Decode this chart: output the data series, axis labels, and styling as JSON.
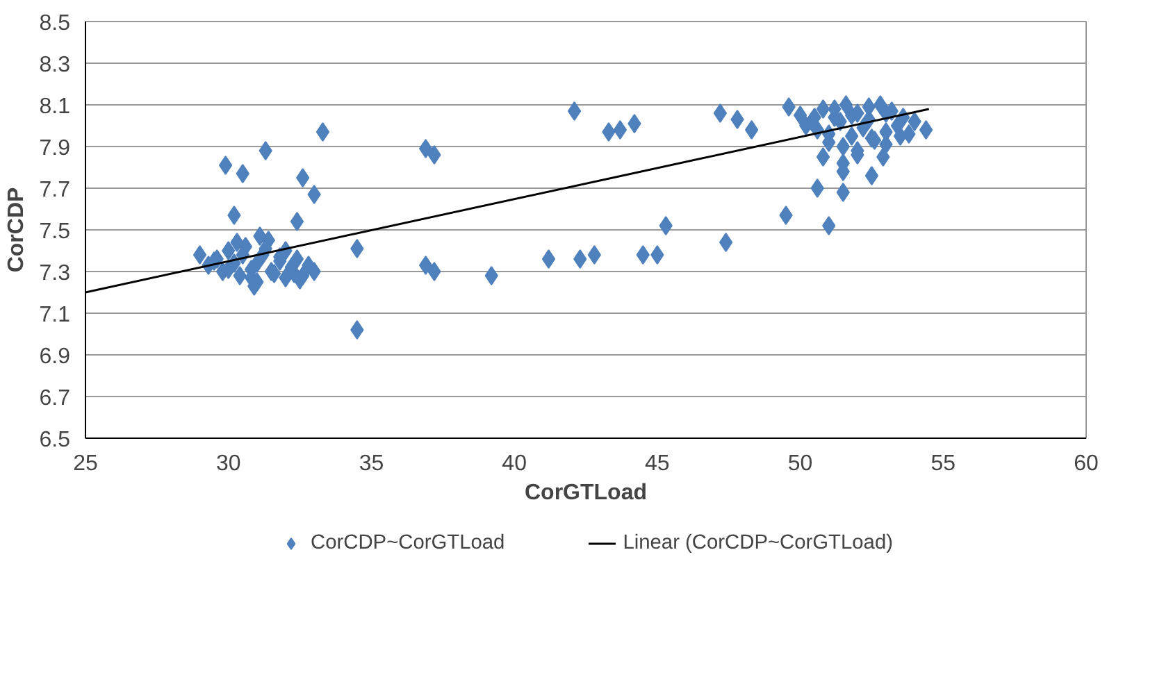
{
  "chart_data": {
    "type": "scatter",
    "xlabel": "CorGTLoad",
    "ylabel": "CorCDP",
    "xlim": [
      25,
      60
    ],
    "ylim": [
      6.5,
      8.5
    ],
    "xticks": [
      25,
      30,
      35,
      40,
      45,
      50,
      55,
      60
    ],
    "yticks": [
      6.5,
      6.7,
      6.9,
      7.1,
      7.3,
      7.5,
      7.7,
      7.9,
      8.1,
      8.3,
      8.5
    ],
    "grid": "y",
    "legend": "bottom",
    "series": [
      {
        "name": "CorCDP~CorGTLoad",
        "color": "#4f81bd",
        "marker": "diamond",
        "x": [
          29.0,
          29.3,
          29.6,
          29.8,
          30.0,
          30.2,
          30.4,
          30.6,
          30.8,
          31.0,
          31.2,
          31.4,
          31.6,
          31.8,
          32.0,
          32.2,
          32.4,
          32.6,
          32.8,
          33.0,
          29.5,
          30.0,
          30.5,
          31.0,
          31.5,
          32.0,
          32.5,
          30.3,
          30.8,
          31.3,
          31.8,
          32.3,
          30.9,
          31.1,
          29.9,
          30.5,
          30.2,
          31.3,
          32.6,
          33.0,
          32.4,
          33.3,
          34.5,
          34.5,
          36.9,
          37.2,
          36.9,
          37.2,
          39.2,
          41.2,
          42.3,
          42.8,
          44.5,
          45.0,
          45.3,
          47.4,
          49.5,
          42.1,
          43.3,
          43.7,
          44.2,
          47.2,
          47.8,
          48.3,
          50.6,
          51.0,
          51.5,
          51.5,
          52.5,
          52.9,
          50.8,
          49.6,
          50.0,
          50.4,
          50.8,
          51.2,
          51.6,
          52.0,
          52.4,
          52.8,
          53.2,
          53.6,
          54.0,
          54.4,
          50.2,
          50.6,
          51.0,
          51.4,
          51.8,
          52.2,
          52.6,
          53.0,
          53.4,
          53.8,
          50.5,
          51.0,
          51.5,
          52.0,
          52.5,
          53.0,
          53.5,
          51.2,
          51.8,
          52.4,
          53.0,
          51.5,
          52.0
        ],
        "values": [
          7.38,
          7.33,
          7.36,
          7.3,
          7.4,
          7.34,
          7.28,
          7.42,
          7.31,
          7.25,
          7.38,
          7.45,
          7.29,
          7.35,
          7.27,
          7.32,
          7.36,
          7.28,
          7.33,
          7.3,
          7.35,
          7.31,
          7.38,
          7.34,
          7.3,
          7.4,
          7.26,
          7.44,
          7.27,
          7.41,
          7.37,
          7.29,
          7.23,
          7.47,
          7.81,
          7.77,
          7.57,
          7.88,
          7.75,
          7.67,
          7.54,
          7.97,
          7.41,
          7.02,
          7.89,
          7.86,
          7.33,
          7.3,
          7.28,
          7.36,
          7.36,
          7.38,
          7.38,
          7.38,
          7.52,
          7.44,
          7.57,
          8.07,
          7.97,
          7.98,
          8.01,
          8.06,
          8.03,
          7.98,
          7.7,
          7.52,
          7.68,
          7.78,
          7.76,
          7.85,
          7.85,
          8.09,
          8.05,
          8.02,
          8.08,
          8.04,
          8.1,
          8.06,
          8.03,
          8.1,
          8.07,
          8.04,
          8.02,
          7.98,
          8.0,
          7.98,
          7.96,
          8.02,
          7.95,
          7.99,
          7.93,
          7.97,
          8.0,
          7.96,
          8.04,
          7.92,
          7.9,
          7.88,
          7.94,
          7.91,
          7.95,
          8.08,
          8.05,
          8.09,
          8.06,
          7.82,
          7.86
        ]
      },
      {
        "name": "Linear (CorCDP~CorGTLoad)",
        "color": "#000000",
        "type": "line",
        "x": [
          25,
          54.5
        ],
        "values": [
          7.2,
          8.08
        ]
      }
    ]
  }
}
